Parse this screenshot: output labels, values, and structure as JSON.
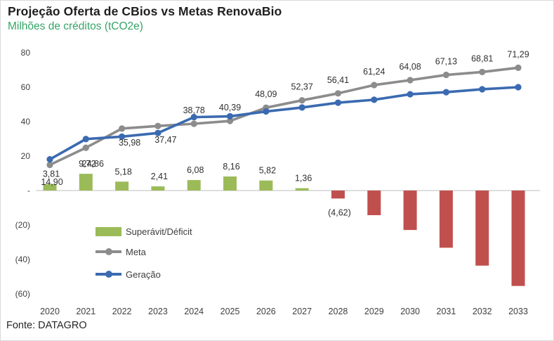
{
  "header": {
    "title": "Projeção Oferta de CBios vs Metas RenovaBio",
    "subtitle": "Milhões de créditos (tCO2e)"
  },
  "source": "Fonte: DATAGRO",
  "colors": {
    "title": "#1f1f1f",
    "subtitle_green": "#36a567",
    "surplus_green": "#9bbb59",
    "deficit_red": "#c0504d",
    "meta_gray": "#8c8c8c",
    "geracao_blue": "#3b6ab0",
    "axis_line": "#c9c9c9",
    "label_text": "#303030",
    "axis_text": "#404040"
  },
  "legend": [
    {
      "label": "Superávit/Déficit",
      "type": "bar",
      "color": "#9bbb59"
    },
    {
      "label": "Meta",
      "type": "line",
      "color": "#8c8c8c"
    },
    {
      "label": "Geração",
      "type": "line",
      "color": "#3b6ab0"
    }
  ],
  "chart_data": {
    "type": "combo",
    "title": "Projeção Oferta de CBios vs Metas RenovaBio",
    "ylabel": "Milhões de créditos (tCO2e)",
    "categories": [
      "2020",
      "2021",
      "2022",
      "2023",
      "2024",
      "2025",
      "2026",
      "2027",
      "2028",
      "2029",
      "2030",
      "2031",
      "2032",
      "2033"
    ],
    "series": [
      {
        "name": "Superávit/Déficit",
        "type": "bar",
        "colors": {
          "positive": "#9bbb59",
          "negative": "#c0504d"
        },
        "values": [
          3.81,
          9.72,
          5.18,
          2.41,
          6.08,
          8.16,
          5.82,
          1.36,
          -4.62,
          -14.3,
          -22.9,
          -33.2,
          -43.6,
          -55.4
        ],
        "labels": [
          "3,81",
          "9,72",
          "5,18",
          "2,41",
          "6,08",
          "8,16",
          "5,82",
          "1,36",
          "(4,62)",
          null,
          null,
          null,
          null,
          null
        ]
      },
      {
        "name": "Meta",
        "type": "line",
        "color": "#8c8c8c",
        "values": [
          14.9,
          24.86,
          35.98,
          37.47,
          38.78,
          40.39,
          48.09,
          52.37,
          56.41,
          61.24,
          64.08,
          67.13,
          68.81,
          71.29
        ],
        "labels": [
          "14,90",
          "24,86",
          "35,98",
          "37,47",
          "38,78",
          "40,39",
          "48,09",
          "52,37",
          "56,41",
          "61,24",
          "64,08",
          "67,13",
          "68,81",
          "71,29"
        ],
        "label_placement": [
          "start",
          "overlap",
          "below",
          "below",
          "above",
          "above",
          "above",
          "above",
          "above",
          "above",
          "above",
          "above",
          "above",
          "above"
        ]
      },
      {
        "name": "Geração",
        "type": "line",
        "color": "#3b6ab0",
        "values": [
          18.1,
          29.9,
          31.3,
          33.4,
          42.6,
          43.1,
          45.9,
          48.2,
          51.0,
          52.7,
          55.9,
          57.1,
          58.8,
          60.0
        ],
        "labels": null
      }
    ],
    "yaxis": {
      "ticks": [
        80,
        60,
        40,
        20,
        0,
        -20,
        -40,
        -60
      ],
      "tick_labels": [
        "80",
        "60",
        "40",
        "20",
        "-",
        "(20)",
        "(40)",
        "(60)"
      ],
      "ylim": [
        -60,
        80
      ],
      "grid": false
    },
    "legend_position": "inside-bottom-left"
  }
}
